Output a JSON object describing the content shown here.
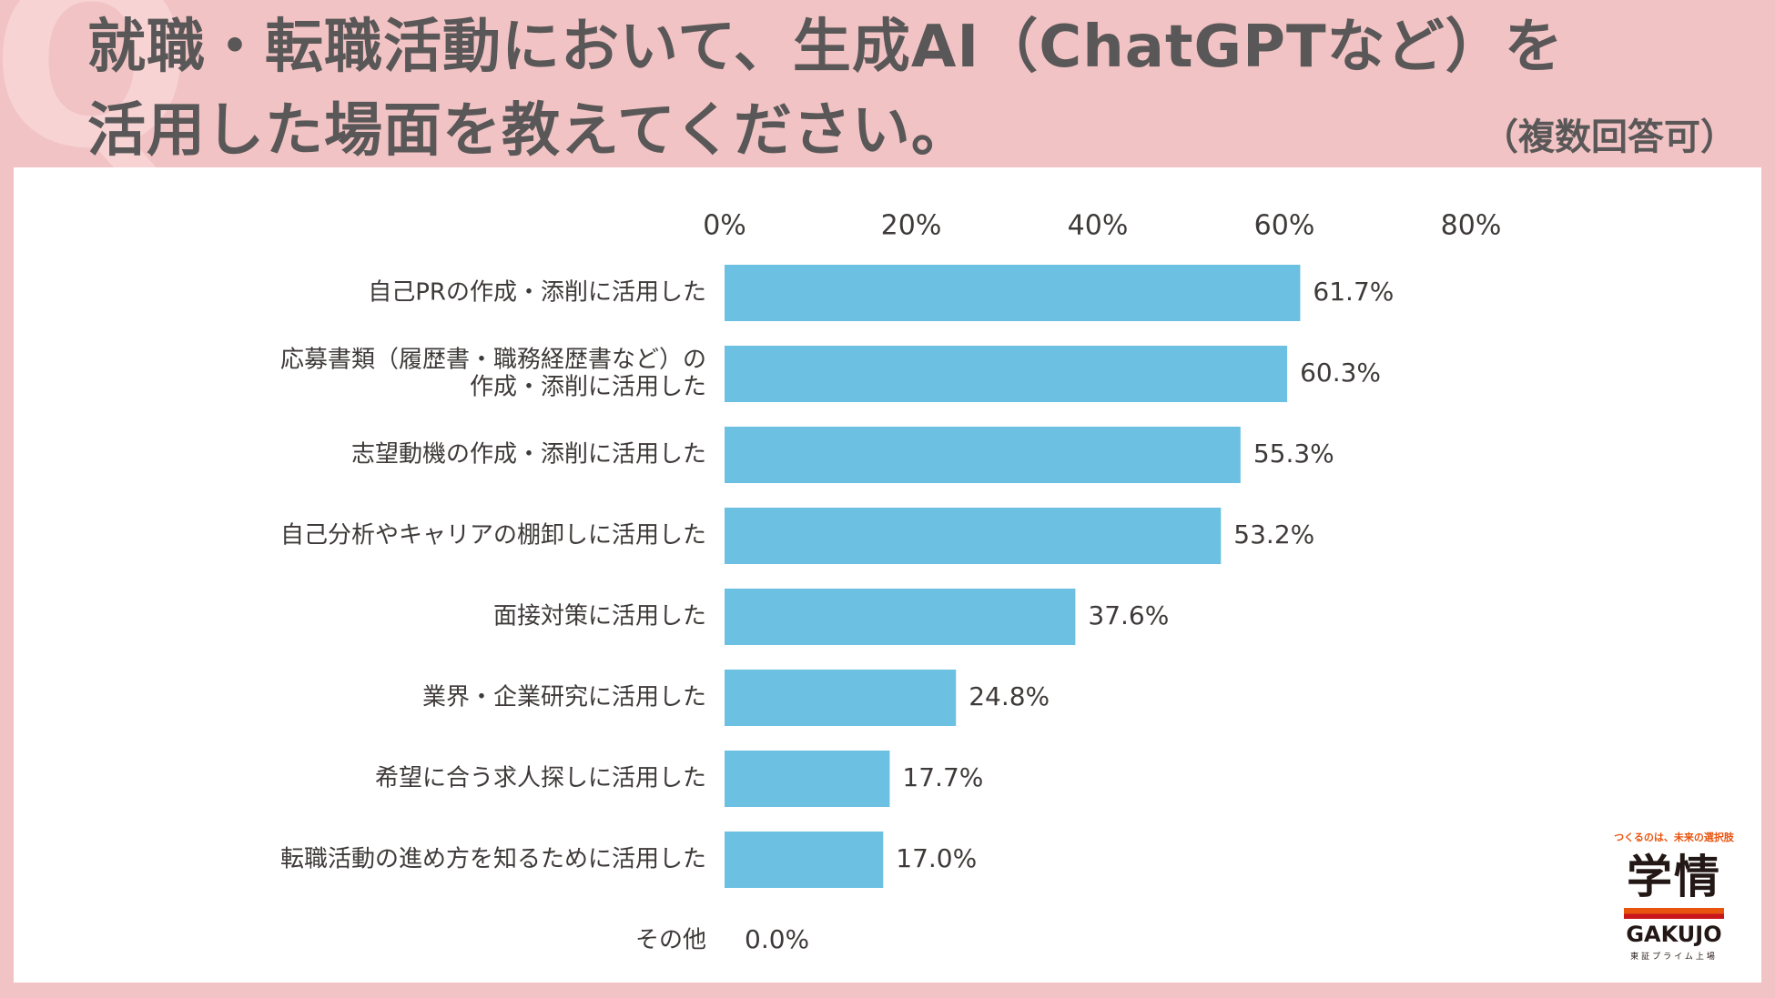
{
  "header": {
    "watermark": "Q",
    "title_line1": "就職・転職活動において、生成AI（ChatGPTなど）を",
    "title_line2": "活用した場面を教えてください。",
    "note": "（複数回答可）"
  },
  "chart_data": {
    "type": "bar",
    "orientation": "horizontal",
    "title": "就職・転職活動において、生成AI（ChatGPTなど）を活用した場面を教えてください。",
    "xlabel": "",
    "ylabel": "",
    "xlim": [
      0,
      80
    ],
    "ticks": [
      "0%",
      "20%",
      "40%",
      "60%",
      "80%"
    ],
    "categories": [
      [
        "自己PRの作成・添削に活用した"
      ],
      [
        "応募書類（履歴書・職務経歴書など）の",
        "作成・添削に活用した"
      ],
      [
        "志望動機の作成・添削に活用した"
      ],
      [
        "自己分析やキャリアの棚卸しに活用した"
      ],
      [
        "面接対策に活用した"
      ],
      [
        "業界・企業研究に活用した"
      ],
      [
        "希望に合う求人探しに活用した"
      ],
      [
        "転職活動の進め方を知るために活用した"
      ],
      [
        "その他"
      ]
    ],
    "values": [
      61.7,
      60.3,
      55.3,
      53.2,
      37.6,
      24.8,
      17.7,
      17.0,
      0.0
    ],
    "value_labels": [
      "61.7%",
      "60.3%",
      "55.3%",
      "53.2%",
      "37.6%",
      "24.8%",
      "17.7%",
      "17.0%",
      "0.0%"
    ],
    "bar_color": "#6cc0e2",
    "grid": false,
    "legend": "none"
  },
  "logo": {
    "tagline": "つくるのは、未来の選択肢",
    "kanji": "学情",
    "latin": "GAKUJO",
    "sub": "東証プライム上場"
  }
}
